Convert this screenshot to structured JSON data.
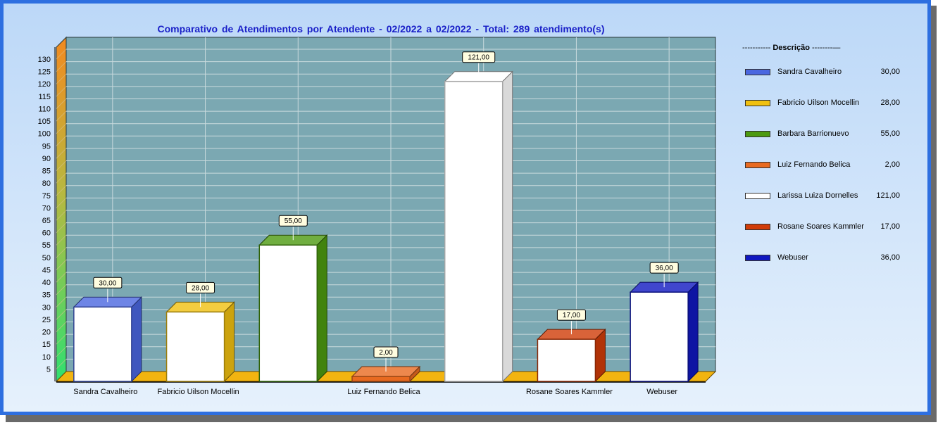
{
  "chart_data": {
    "type": "bar",
    "title": "Comparativo de Atendimentos por Atendente - 02/2022 a 02/2022 - Total: 289 atendimento(s)",
    "categories": [
      "Sandra Cavalheiro",
      "Fabricio Uilson Mocellin",
      "Barbara Barrionuevo",
      "Luiz Fernando Belica",
      "Larissa Luiza Dornelles",
      "Rosane Soares Kammler",
      "Webuser"
    ],
    "x_tick_labels": [
      "Sandra Cavalheiro",
      "Fabricio Uilson Mocellin",
      "",
      "Luiz Fernando Belica",
      "",
      "Rosane Soares Kammler",
      "Webuser"
    ],
    "values": [
      30,
      28,
      55,
      2,
      121,
      17,
      36
    ],
    "value_labels": [
      "30,00",
      "28,00",
      "55,00",
      "2,00",
      "121,00",
      "17,00",
      "36,00"
    ],
    "colors": [
      "#4a66e0",
      "#f0c010",
      "#4c9a10",
      "#e86a20",
      "#ffffff",
      "#d03c08",
      "#1018c0"
    ],
    "ylim": [
      0,
      130
    ],
    "yticks": [
      5,
      10,
      15,
      20,
      25,
      30,
      35,
      40,
      45,
      50,
      55,
      60,
      65,
      70,
      75,
      80,
      85,
      90,
      95,
      100,
      105,
      110,
      115,
      120,
      125,
      130
    ],
    "grid": true,
    "legend": {
      "position": "right",
      "title": "Descrição",
      "items": [
        {
          "name": "Sandra Cavalheiro",
          "value": "30,00"
        },
        {
          "name": "Fabricio Uilson Mocellin",
          "value": "28,00"
        },
        {
          "name": "Barbara Barrionuevo",
          "value": "55,00"
        },
        {
          "name": "Luiz Fernando Belica",
          "value": "2,00"
        },
        {
          "name": "Larissa Luiza Dornelles",
          "value": "121,00"
        },
        {
          "name": "Rosane Soares Kammler",
          "value": "17,00"
        },
        {
          "name": "Webuser",
          "value": "36,00"
        }
      ]
    }
  }
}
